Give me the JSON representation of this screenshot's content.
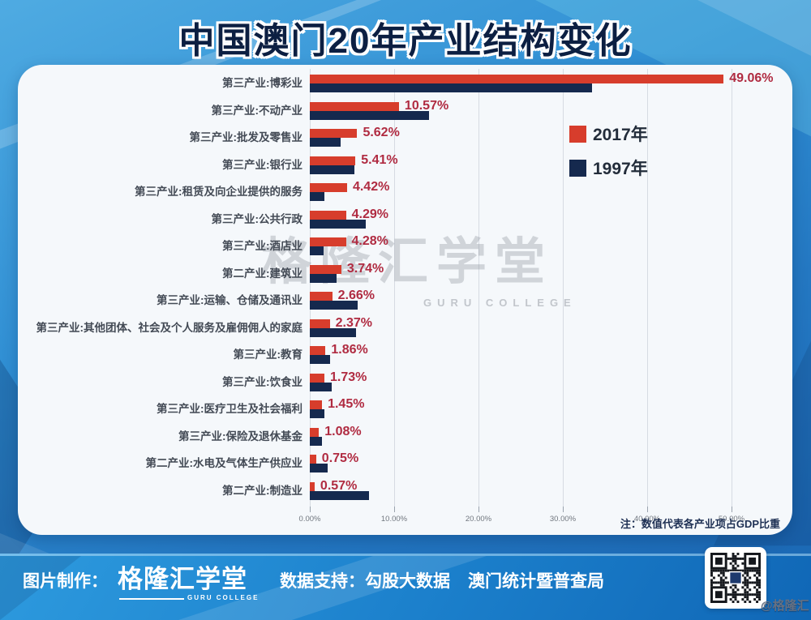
{
  "title": "中国澳门20年产业结构变化",
  "chart_data": {
    "type": "bar",
    "orientation": "horizontal",
    "title": "中国澳门20年产业结构变化",
    "categories": [
      "第三产业:博彩业",
      "第三产业:不动产业",
      "第三产业:批发及零售业",
      "第三产业:银行业",
      "第三产业:租赁及向企业提供的服务",
      "第三产业:公共行政",
      "第三产业:酒店业",
      "第二产业:建筑业",
      "第三产业:运输、仓储及通讯业",
      "第三产业:其他团体、社会及个人服务及雇佣佣人的家庭",
      "第三产业:教育",
      "第三产业:饮食业",
      "第三产业:医疗卫生及社会福利",
      "第三产业:保险及退休基金",
      "第二产业:水电及气体生产供应业",
      "第二产业:制造业"
    ],
    "series": [
      {
        "name": "2017年",
        "color": "#d73d2c",
        "values": [
          49.06,
          10.57,
          5.62,
          5.41,
          4.42,
          4.29,
          4.28,
          3.74,
          2.66,
          2.37,
          1.86,
          1.73,
          1.45,
          1.08,
          0.75,
          0.57
        ]
      },
      {
        "name": "1997年",
        "color": "#15294e",
        "values": [
          33.5,
          14.1,
          3.7,
          5.3,
          1.7,
          6.6,
          1.6,
          3.2,
          5.7,
          5.5,
          2.4,
          2.6,
          1.7,
          1.4,
          2.1,
          7.0
        ]
      }
    ],
    "value_labels": [
      "49.06%",
      "10.57%",
      "5.62%",
      "5.41%",
      "4.42%",
      "4.29%",
      "4.28%",
      "3.74%",
      "2.66%",
      "2.37%",
      "1.86%",
      "1.73%",
      "1.45%",
      "1.08%",
      "0.75%",
      "0.57%"
    ],
    "x_ticks": [
      "0.00%",
      "10.00%",
      "20.00%",
      "30.00%",
      "40.00%",
      "50.00%"
    ],
    "xlim": [
      0,
      50
    ],
    "grid": true,
    "legend_position": "upper-right-inside",
    "note": "注：数值代表各产业项占GDP比重"
  },
  "legend": {
    "items": [
      {
        "label": "2017年",
        "color": "#d73d2c"
      },
      {
        "label": "1997年",
        "color": "#15294e"
      }
    ]
  },
  "watermark": {
    "text": "格隆汇学堂",
    "subtext": "GURU COLLEGE"
  },
  "footer": {
    "made_by_label": "图片制作：",
    "logo_text": "格隆汇学堂",
    "logo_subtext": "GURU COLLEGE",
    "data_support_label": "数据支持：",
    "data_sources": [
      "勾股大数据",
      "澳门统计暨普查局"
    ],
    "watermark_handle": "@格隆汇",
    "qr_icon": "qr-code"
  },
  "colors": {
    "bar_2017": "#d73d2c",
    "bar_1997": "#15294e",
    "value_label": "#b02b41",
    "panel_background": "#f5f8fb",
    "background_blue": "#2f8ed3",
    "title_text": "#0c1f42"
  }
}
